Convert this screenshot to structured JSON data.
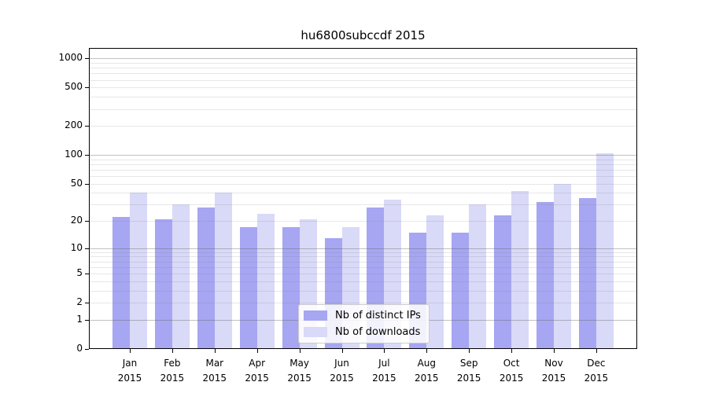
{
  "title": "hu6800subccdf 2015",
  "colors": {
    "ips_bar": "#a6a6f2",
    "downloads_bar": "#d9d9f8",
    "grid_major": "rgba(100,100,100,0.40)",
    "grid_minor": "rgba(120,120,120,0.18)",
    "axis": "#000000",
    "legend_border": "#cccccc"
  },
  "chart_data": {
    "type": "bar",
    "title": "hu6800subccdf 2015",
    "categories": [
      "Jan\n2015",
      "Feb\n2015",
      "Mar\n2015",
      "Apr\n2015",
      "May\n2015",
      "Jun\n2015",
      "Jul\n2015",
      "Aug\n2015",
      "Sep\n2015",
      "Oct\n2015",
      "Nov\n2015",
      "Dec\n2015"
    ],
    "series": [
      {
        "name": "Nb of distinct IPs",
        "color": "#a6a6f2",
        "values": [
          22,
          21,
          28,
          17,
          17,
          13,
          28,
          15,
          15,
          23,
          32,
          35
        ]
      },
      {
        "name": "Nb of downloads",
        "color": "#d9d9f8",
        "values": [
          40,
          30,
          40,
          24,
          21,
          17,
          34,
          23,
          30,
          42,
          50,
          105
        ]
      }
    ],
    "xlabel": "",
    "ylabel": "",
    "yscale": "log1p",
    "ylim": [
      0,
      1270
    ],
    "ytick_values": [
      0,
      1,
      2,
      5,
      10,
      20,
      50,
      100,
      200,
      500,
      1000
    ],
    "ytick_labels": [
      "0",
      "1",
      "2",
      "5",
      "10",
      "20",
      "50",
      "100",
      "200",
      "500",
      "1000"
    ],
    "minor_grid_values": [
      2,
      3,
      4,
      5,
      6,
      7,
      8,
      9,
      20,
      30,
      40,
      50,
      60,
      70,
      80,
      90,
      200,
      300,
      400,
      500,
      600,
      700,
      800,
      900
    ],
    "major_grid_values": [
      1,
      10,
      100,
      1000
    ],
    "grid": "both",
    "legend_position": "lower center"
  }
}
